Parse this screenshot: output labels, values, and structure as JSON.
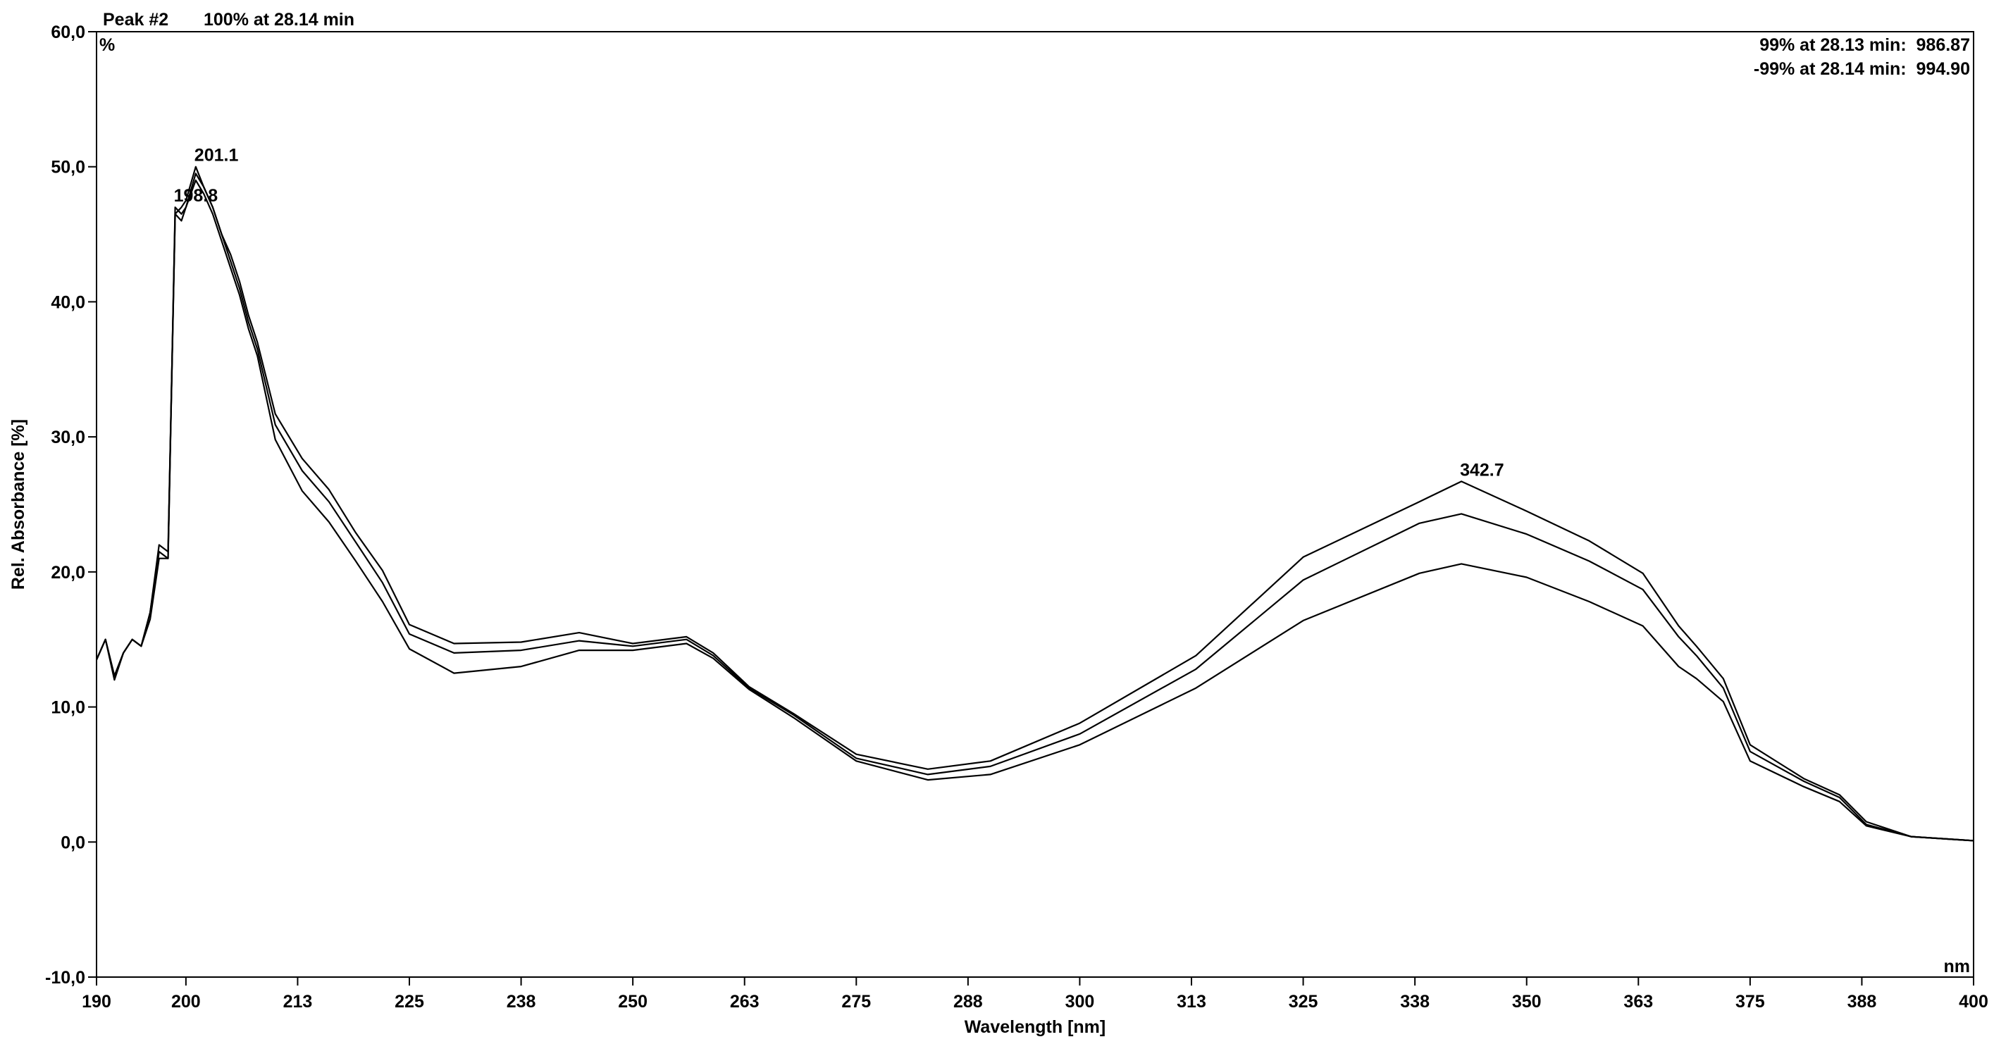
{
  "chart_data": {
    "type": "line",
    "title": "Peak #2",
    "subtitle": "100% at 28.14 min",
    "annotations": [
      "99% at 28.13 min:  986.87",
      "-99% at 28.14 min:  994.90"
    ],
    "y_unit": "%",
    "x_unit": "nm",
    "xlabel": "Wavelength [nm]",
    "ylabel": "Rel. Absorbance [%]",
    "peak_labels": [
      "201.1",
      "198.8",
      "342.7"
    ],
    "xlim": [
      190,
      400
    ],
    "ylim": [
      -10,
      60
    ],
    "xticks": [
      190,
      200,
      {
        "value": 212.5,
        "label": "213"
      },
      225,
      {
        "value": 237.5,
        "label": "238"
      },
      250,
      {
        "value": 262.5,
        "label": "263"
      },
      275,
      {
        "value": 287.5,
        "label": "288"
      },
      300,
      {
        "value": 312.5,
        "label": "313"
      },
      325,
      {
        "value": 337.5,
        "label": "338"
      },
      350,
      {
        "value": 362.5,
        "label": "363"
      },
      375,
      {
        "value": 387.5,
        "label": "388"
      },
      400
    ],
    "yticks": [
      {
        "value": -10,
        "label": "-10,0"
      },
      {
        "value": 0,
        "label": "0,0"
      },
      {
        "value": 10,
        "label": "10,0"
      },
      {
        "value": 20,
        "label": "20,0"
      },
      {
        "value": 30,
        "label": "30,0"
      },
      {
        "value": 40,
        "label": "40,0"
      },
      {
        "value": 50,
        "label": "50,0"
      },
      {
        "value": 60,
        "label": "60,0"
      }
    ],
    "x": [
      190,
      191,
      192,
      193,
      194,
      195,
      196,
      197,
      198,
      198.8,
      199.5,
      200,
      201.1,
      202,
      203,
      204,
      205,
      206,
      207,
      208,
      210,
      213,
      216,
      219,
      222,
      225,
      230,
      237.5,
      244,
      250,
      256,
      259,
      263,
      268,
      275,
      283,
      290,
      300,
      313,
      325,
      338,
      342.7,
      350,
      357,
      363,
      367,
      369,
      372,
      375,
      381,
      385,
      388,
      393,
      400
    ],
    "series": [
      {
        "color": "#000000",
        "values": [
          13.5,
          15,
          12.3,
          14,
          15,
          14.5,
          17,
          22,
          21.5,
          46.5,
          47,
          47.5,
          50,
          48.5,
          47,
          45,
          43.5,
          41.5,
          39,
          37,
          31.7,
          28.4,
          26.1,
          22.9,
          20.1,
          16.1,
          14.7,
          14.8,
          15.5,
          14.7,
          15.2,
          14,
          11.5,
          9.5,
          6.5,
          5.4,
          6,
          8.8,
          13.8,
          21.1,
          25.2,
          26.7,
          24.5,
          22.3,
          19.9,
          16,
          14.5,
          12.1,
          7.2,
          4.7,
          3.5,
          1.5,
          0.4,
          0.1
        ]
      },
      {
        "color": "#000000",
        "values": [
          13.5,
          15,
          12.3,
          14,
          15,
          14.5,
          17,
          21.5,
          21,
          47,
          46.5,
          47,
          49.5,
          48.5,
          47,
          45,
          43,
          41,
          38.5,
          36.5,
          30.9,
          27.5,
          25.2,
          22.2,
          19.2,
          15.4,
          14.0,
          14.2,
          14.9,
          14.5,
          15.0,
          13.8,
          11.4,
          9.4,
          6.2,
          5.0,
          5.6,
          8.0,
          12.8,
          19.4,
          23.6,
          24.3,
          22.8,
          20.8,
          18.7,
          15.2,
          13.8,
          11.4,
          6.7,
          4.5,
          3.3,
          1.3,
          0.4,
          0.1
        ]
      },
      {
        "color": "#000000",
        "values": [
          13.5,
          15,
          12,
          14,
          15,
          14.5,
          16.5,
          21,
          21,
          46.5,
          46,
          47,
          49,
          48,
          46.5,
          44.5,
          42.5,
          40.5,
          38,
          36,
          29.8,
          26.0,
          23.7,
          20.8,
          17.8,
          14.3,
          12.5,
          13.0,
          14.2,
          14.2,
          14.7,
          13.6,
          11.3,
          9.2,
          6.0,
          4.6,
          5.0,
          7.2,
          11.4,
          16.4,
          19.9,
          20.6,
          19.6,
          17.8,
          16.0,
          13.0,
          12.1,
          10.4,
          6.0,
          4.1,
          3.0,
          1.2,
          0.4,
          0.1
        ]
      }
    ]
  }
}
